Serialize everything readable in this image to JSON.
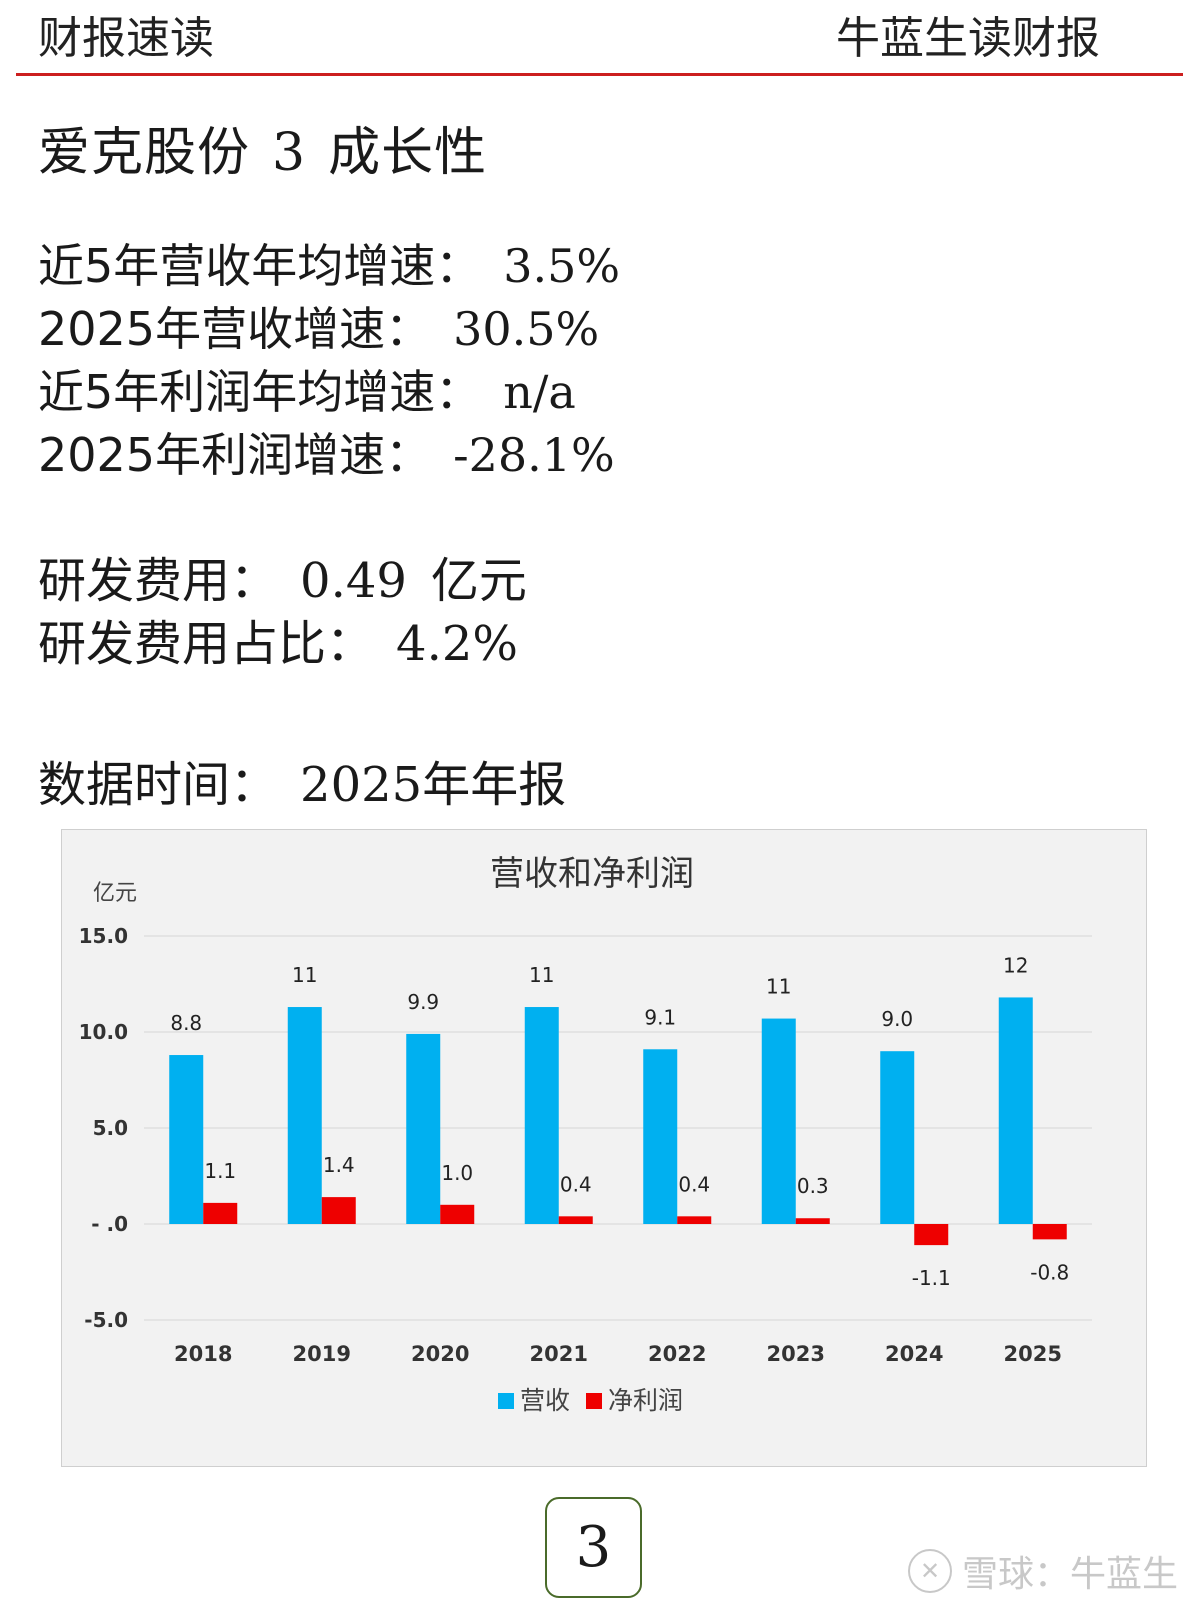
{
  "header": {
    "left": "财报速读",
    "right": "牛蓝生读财报"
  },
  "section": {
    "company": "爱克股份",
    "number": "3",
    "topic": "成长性"
  },
  "metrics": [
    {
      "label": "近5年营收年均增速",
      "value": "3.5%"
    },
    {
      "label": "2025年营收增速",
      "value": "30.5%"
    },
    {
      "label": "近5年利润年均增速",
      "value": "n/a"
    },
    {
      "label": "2025年利润增速",
      "value": "-28.1%"
    }
  ],
  "rd": {
    "expense_label": "研发费用",
    "expense_value": "0.49",
    "expense_unit": "亿元",
    "ratio_label": "研发费用占比",
    "ratio_value": "4.2%"
  },
  "data_date": {
    "label": "数据时间",
    "year": "2025",
    "suffix": "年年报"
  },
  "colon": "：",
  "chart_data": {
    "type": "bar",
    "title": "营收和净利润",
    "ylabel": "亿元",
    "xlabel": "",
    "categories": [
      "2018",
      "2019",
      "2020",
      "2021",
      "2022",
      "2023",
      "2024",
      "2025"
    ],
    "yticks": [
      15.0,
      10.0,
      5.0,
      0,
      -5.0
    ],
    "ytick_labels": [
      "15.0",
      "10.0",
      "5.0",
      "- .0",
      "-5.0"
    ],
    "ylim": [
      -5.0,
      15.0
    ],
    "grid": true,
    "legend_position": "bottom",
    "series": [
      {
        "name": "营收",
        "color": "#00b0f0",
        "values": [
          8.8,
          11.3,
          9.9,
          11.3,
          9.1,
          10.7,
          9.0,
          11.8
        ],
        "labels": [
          "8.8",
          "11",
          "9.9",
          "11",
          "9.1",
          "11",
          "9.0",
          "12"
        ]
      },
      {
        "name": "净利润",
        "color": "#ee0000",
        "values": [
          1.1,
          1.4,
          1.0,
          0.4,
          0.4,
          0.3,
          -1.1,
          -0.8
        ],
        "labels": [
          "1.1",
          "1.4",
          "1.0",
          "0.4",
          "0.4",
          "0.3",
          "-1.1",
          "-0.8"
        ]
      }
    ]
  },
  "page_number": "3",
  "watermark": {
    "logo": "✕",
    "text": "雪球：牛蓝生"
  }
}
